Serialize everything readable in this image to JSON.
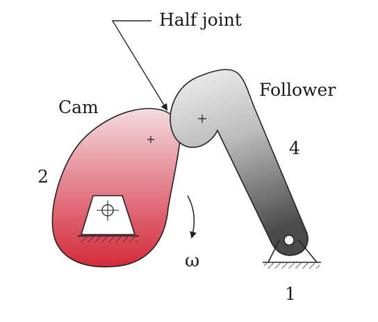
{
  "labels": {
    "half_joint": "Half joint",
    "cam": "Cam",
    "follower": "Follower",
    "cam_link_number": "2",
    "follower_link_number": "4",
    "ground_link_number": "1",
    "omega": "ω"
  },
  "colors": {
    "cam_red": "#d42a3a",
    "cam_light": "#f3dde0",
    "follower_dark": "#4a4a4a",
    "follower_light": "#f2f2f2",
    "stroke": "#222222"
  }
}
